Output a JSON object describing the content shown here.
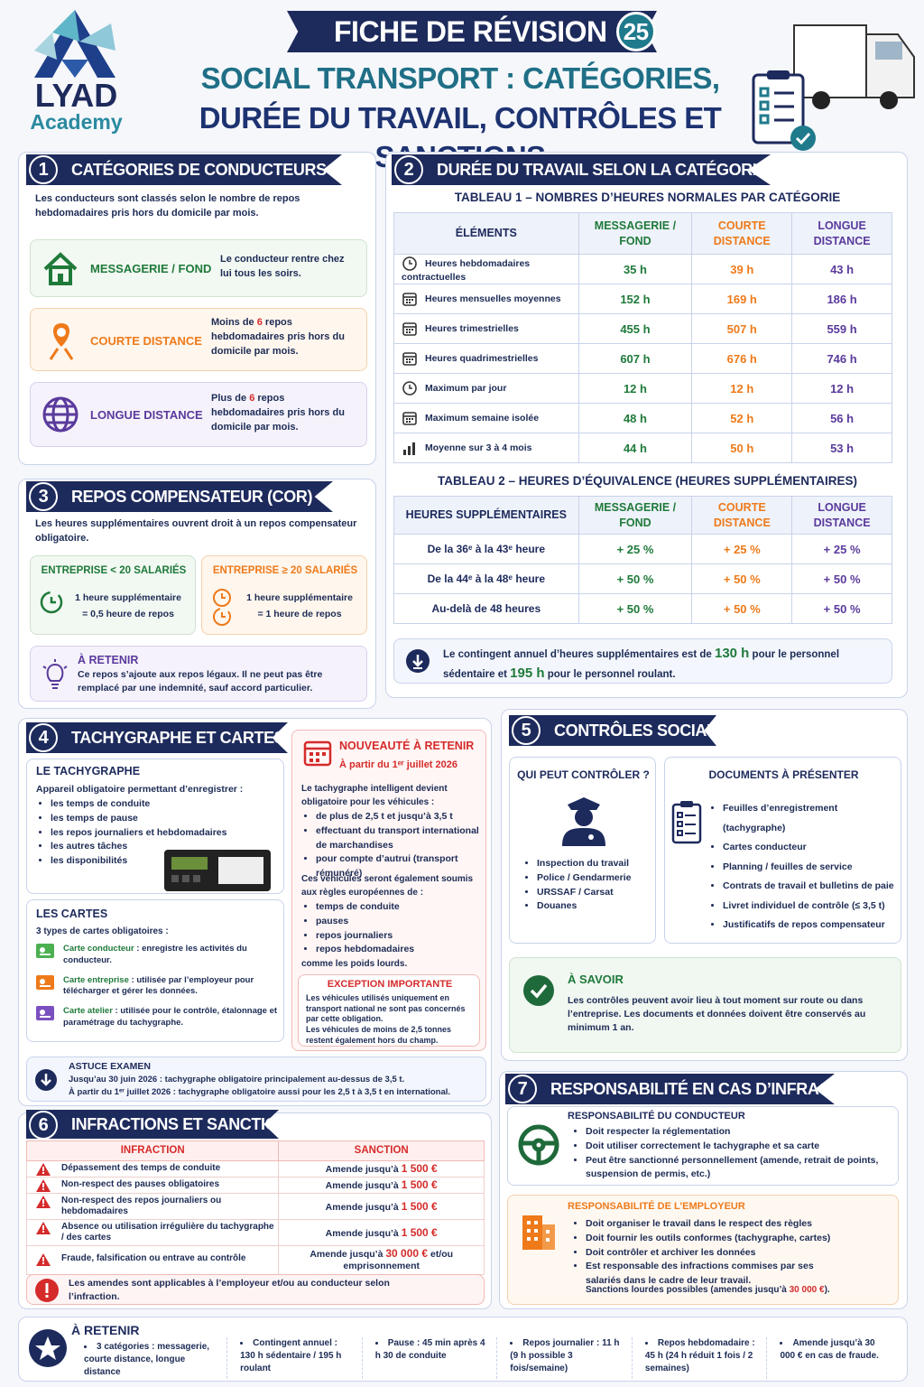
{
  "header": {
    "brand": "LYAD",
    "brand_sub": "Academy",
    "title": "FICHE DE RÉVISION",
    "number": "25",
    "subtitle": [
      "SOCIAL TRANSPORT : CATÉGORIES,",
      "DURÉE DU TRAVAIL, CONTRÔLES ET SANCTIONS"
    ]
  },
  "s1": {
    "num": "1",
    "title": "CATÉGORIES DE CONDUCTEURS",
    "intro": "Les conducteurs sont classés selon le nombre de repos hebdomadaires pris hors du domicile par mois.",
    "cards": [
      {
        "name": "MESSAGERIE / FOND",
        "desc": [
          "Le conducteur rentre chez lui tous les soirs."
        ]
      },
      {
        "name": "COURTE DISTANCE",
        "desc": [
          "Moins de ",
          "6",
          " repos hebdomadaires pris hors du domicile par mois."
        ]
      },
      {
        "name": "LONGUE DISTANCE",
        "desc": [
          "Plus de ",
          "6",
          " repos hebdomadaires pris hors du domicile par mois."
        ]
      }
    ]
  },
  "s2": {
    "num": "2",
    "title": "DURÉE DU TRAVAIL SELON LA CATÉGORIE",
    "table1": {
      "title": "TABLEAU 1 – NOMBRES D’HEURES NORMALES PAR CATÉGORIE",
      "headers": [
        "ÉLÉMENTS",
        "MESSAGERIE / FOND",
        "COURTE DISTANCE",
        "LONGUE DISTANCE"
      ],
      "rows": [
        [
          "Heures hebdomadaires contractuelles",
          "35 h",
          "39 h",
          "43 h"
        ],
        [
          "Heures mensuelles moyennes",
          "152 h",
          "169 h",
          "186 h"
        ],
        [
          "Heures trimestrielles",
          "455 h",
          "507 h",
          "559 h"
        ],
        [
          "Heures quadrimestrielles",
          "607 h",
          "676 h",
          "746 h"
        ],
        [
          "Maximum par jour",
          "12 h",
          "12 h",
          "12 h"
        ],
        [
          "Maximum semaine isolée",
          "48 h",
          "52 h",
          "56 h"
        ],
        [
          "Moyenne sur 3 à 4 mois",
          "44 h",
          "50 h",
          "53 h"
        ]
      ]
    },
    "table2": {
      "title": "TABLEAU 2 – HEURES D’ÉQUIVALENCE (HEURES SUPPLÉMENTAIRES)",
      "headers": [
        "HEURES SUPPLÉMENTAIRES",
        "MESSAGERIE / FOND",
        "COURTE DISTANCE",
        "LONGUE DISTANCE"
      ],
      "rows": [
        [
          "De la 36ᵉ à la 43ᵉ heure",
          "+ 25 %",
          "+ 25 %",
          "+ 25 %"
        ],
        [
          "De la 44ᵉ à la 48ᵉ heure",
          "+ 50 %",
          "+ 50 %",
          "+ 50 %"
        ],
        [
          "Au-delà de 48 heures",
          "+ 50 %",
          "+ 50 %",
          "+ 50 %"
        ]
      ]
    },
    "note": [
      "Le contingent annuel d’heures supplémentaires est de ",
      "130 h",
      " pour le personnel sédentaire et ",
      "195 h",
      " pour le personnel roulant."
    ]
  },
  "s3": {
    "num": "3",
    "title": "REPOS COMPENSATEUR (COR)",
    "intro": "Les heures supplémentaires ouvrent droit à un repos compensateur obligatoire.",
    "boxes": [
      {
        "title": "ENTREPRISE < 20 SALARIÉS",
        "lines": [
          "1 heure supplémentaire",
          "= 0,5 heure de repos"
        ]
      },
      {
        "title": "ENTREPRISE ≥ 20 SALARIÉS",
        "lines": [
          "1 heure supplémentaire",
          "= 1 heure de repos"
        ]
      }
    ],
    "retenir": {
      "title": "À RETENIR",
      "text": "Ce repos s’ajoute aux repos légaux. Il ne peut pas être remplacé par une indemnité, sauf accord particulier."
    }
  },
  "s4": {
    "num": "4",
    "title": "TACHYGRAPHE ET CARTES",
    "tachy": {
      "title": "LE TACHYGRAPHE",
      "intro": "Appareil obligatoire permettant d’enregistrer :",
      "items": [
        "les temps de conduite",
        "les temps de pause",
        "les repos journaliers et hebdomadaires",
        "les autres tâches",
        "les disponibilités"
      ]
    },
    "cartes": {
      "title": "LES CARTES",
      "intro": "3 types de cartes obligatoires :",
      "items": [
        {
          "name": "Carte conducteur",
          "desc": " : enregistre les activités du conducteur."
        },
        {
          "name": "Carte entreprise",
          "desc": " : utilisée par l’employeur pour télécharger et gérer les données."
        },
        {
          "name": "Carte atelier",
          "desc": " : utilisée pour le contrôle, étalonnage et paramétrage du tachygraphe."
        }
      ]
    },
    "nouveaute": {
      "title": "NOUVEAUTÉ À RETENIR",
      "date": "À partir du 1ᵉʳ juillet 2026",
      "intro": "Le tachygraphe intelligent devient obligatoire pour les véhicules :",
      "items": [
        "de plus de 2,5 t et jusqu’à 3,5 t",
        "effectuant du transport international de marchandises",
        "pour compte d’autrui (transport rémunéré)"
      ],
      "text2": "Ces véhicules seront également soumis aux règles européennes de :",
      "items2": [
        "temps de conduite",
        "pauses",
        "repos journaliers",
        "repos hebdomadaires"
      ],
      "text3": "comme les poids lourds."
    },
    "exception": {
      "title": "EXCEPTION IMPORTANTE",
      "lines": [
        "Les véhicules utilisés uniquement en transport national ne sont pas concernés par cette obligation.",
        "Les véhicules de moins de 2,5 tonnes restent également hors du champ."
      ]
    },
    "astuce": {
      "title": "ASTUCE EXAMEN",
      "lines": [
        [
          "Jusqu’au ",
          "30 juin 2026",
          " : tachygraphe obligatoire principalement au-dessus de 3,5 t."
        ],
        [
          "À partir du ",
          "1ᵉʳ juillet 2026",
          " : tachygraphe obligatoire aussi pour les 2,5 t à 3,5 t en international."
        ]
      ]
    }
  },
  "s5": {
    "num": "5",
    "title": "CONTRÔLES SOCIAUX",
    "qui": {
      "title": "QUI PEUT CONTRÔLER ?",
      "items": [
        "Inspection du travail",
        "Police / Gendarmerie",
        "URSSAF / Carsat",
        "Douanes"
      ]
    },
    "docs": {
      "title": "DOCUMENTS À PRÉSENTER",
      "items": [
        "Feuilles d’enregistrement (tachygraphe)",
        "Cartes conducteur",
        "Planning / feuilles de service",
        "Contrats de travail et bulletins de paie",
        "Livret individuel de contrôle (≤ 3,5 t)",
        "Justificatifs de repos compensateur"
      ]
    },
    "savoir": {
      "title": "À SAVOIR",
      "text": "Les contrôles peuvent avoir lieu à tout moment sur route ou dans l’entreprise. Les documents et données doivent être conservés au minimum 1 an."
    }
  },
  "s6": {
    "num": "6",
    "title": "INFRACTIONS ET SANCTIONS",
    "headers": [
      "INFRACTION",
      "SANCTION"
    ],
    "rows": [
      [
        "Dépassement des temps de conduite",
        [
          "Amende jusqu’à ",
          "1 500 €"
        ]
      ],
      [
        "Non-respect des pauses obligatoires",
        [
          "Amende jusqu’à ",
          "1 500 €"
        ]
      ],
      [
        "Non-respect des repos journaliers ou hebdomadaires",
        [
          "Amende jusqu’à ",
          "1 500 €"
        ]
      ],
      [
        "Absence ou utilisation irrégulière du tachygraphe / des cartes",
        [
          "Amende jusqu’à ",
          "1 500 €"
        ]
      ],
      [
        "Fraude, falsification ou entrave au contrôle",
        [
          "Amende jusqu’à ",
          "30 000 €",
          " et/ou emprisonnement"
        ]
      ]
    ],
    "note": "Les amendes sont applicables à l’employeur et/ou au conducteur selon l’infraction."
  },
  "s7": {
    "num": "7",
    "title": "RESPONSABILITÉ EN CAS D’INFRACTION",
    "cond": {
      "title": "RESPONSABILITÉ DU CONDUCTEUR",
      "items": [
        "Doit respecter la réglementation",
        "Doit utiliser correctement le tachygraphe et sa carte",
        "Peut être sanctionné personnellement (amende, retrait de points, suspension de permis, etc.)"
      ]
    },
    "empl": {
      "title": "RESPONSABILITÉ DE L’EMPLOYEUR",
      "items": [
        "Doit organiser le travail dans le respect des règles",
        "Doit fournir les outils conformes (tachygraphe, cartes)",
        "Doit contrôler et archiver les données",
        "Est responsable des infractions commises par ses salariés dans le cadre de leur travail."
      ],
      "final": [
        "Sanctions lourdes possibles (amendes jusqu’à ",
        "30 000 €",
        ")."
      ]
    }
  },
  "footer": {
    "title": "À RETENIR",
    "items": [
      "3 catégories : messagerie, courte distance, longue distance",
      "Contingent annuel : 130 h sédentaire / 195 h roulant",
      "Pause : 45 min après 4 h 30 de conduite",
      "Repos journalier : 11 h (9 h possible 3 fois/semaine)",
      "Repos hebdomadaire : 45 h (24 h réduit 1 fois / 2 semaines)",
      "Amende jusqu’à 30 000 € en cas de fraude."
    ]
  }
}
